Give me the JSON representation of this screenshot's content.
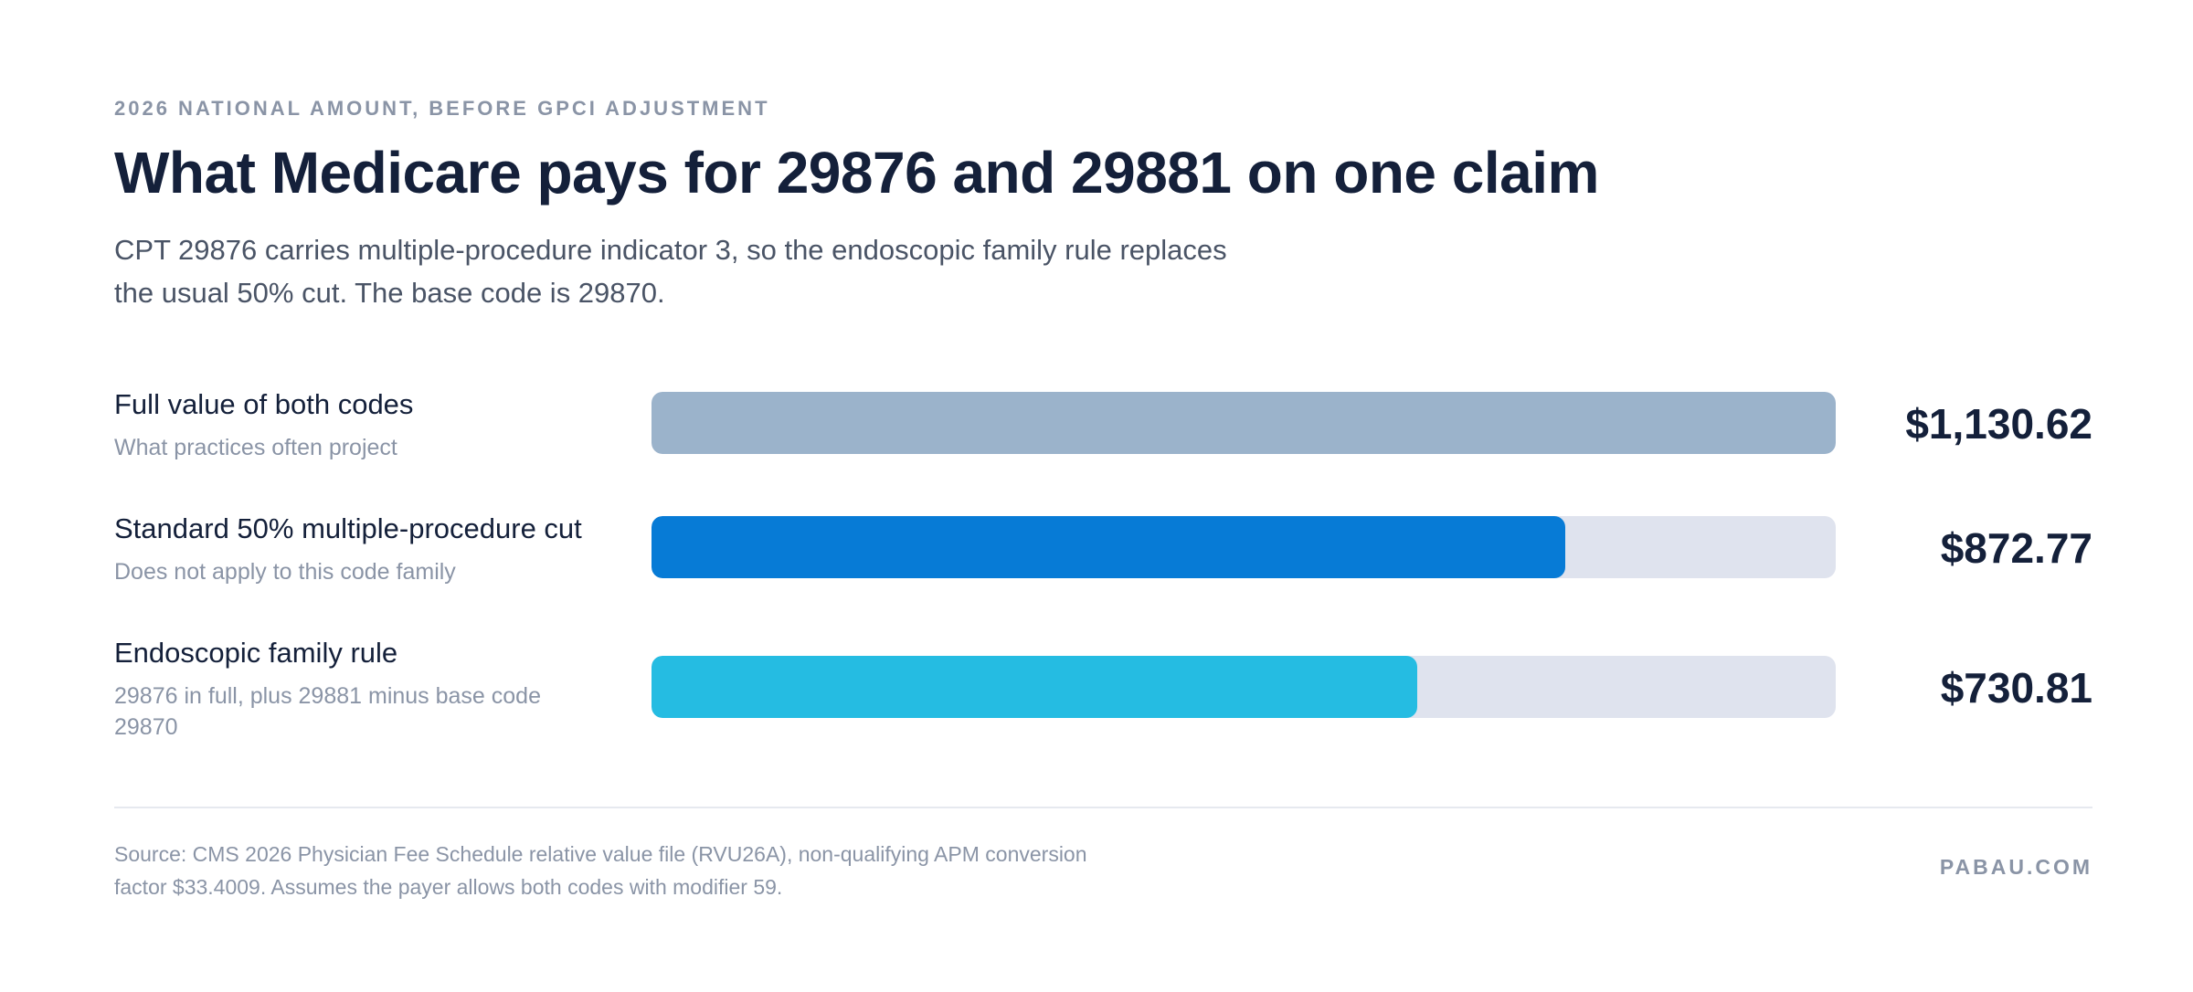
{
  "header": {
    "eyebrow": "2026 NATIONAL AMOUNT, BEFORE GPCI ADJUSTMENT",
    "title": "What Medicare pays for 29876 and 29881 on one claim",
    "subtitle_line1": "CPT 29876 carries multiple-procedure indicator 3, so the endoscopic family rule replaces",
    "subtitle_line2": "the usual 50% cut. The base code is 29870."
  },
  "chart_data": {
    "type": "bar",
    "orientation": "horizontal",
    "xlim": [
      0,
      1130.62
    ],
    "grid": false,
    "categories": [
      "Full value of both codes",
      "Standard 50% multiple-procedure cut",
      "Endoscopic family rule"
    ],
    "values": [
      1130.62,
      872.77,
      730.81
    ],
    "items": [
      {
        "label": "Full value of both codes",
        "sublabel": "What practices often project",
        "value": 1130.62,
        "value_label": "$1,130.62",
        "color": "#9bb3cb"
      },
      {
        "label": "Standard 50% multiple-procedure cut",
        "sublabel": "Does not apply to this code family",
        "value": 872.77,
        "value_label": "$872.77",
        "color": "#077bd6"
      },
      {
        "label": "Endoscopic family rule",
        "sublabel": "29876 in full, plus 29881 minus base code 29870",
        "value": 730.81,
        "value_label": "$730.81",
        "color": "#25bce2"
      }
    ],
    "track_color": "#dfe3ee"
  },
  "footer": {
    "source_line1": "Source: CMS 2026 Physician Fee Schedule relative value file (RVU26A), non-qualifying APM conversion",
    "source_line2": "factor $33.4009. Assumes the payer allows both codes with modifier 59.",
    "brand": "PABAU.COM"
  }
}
